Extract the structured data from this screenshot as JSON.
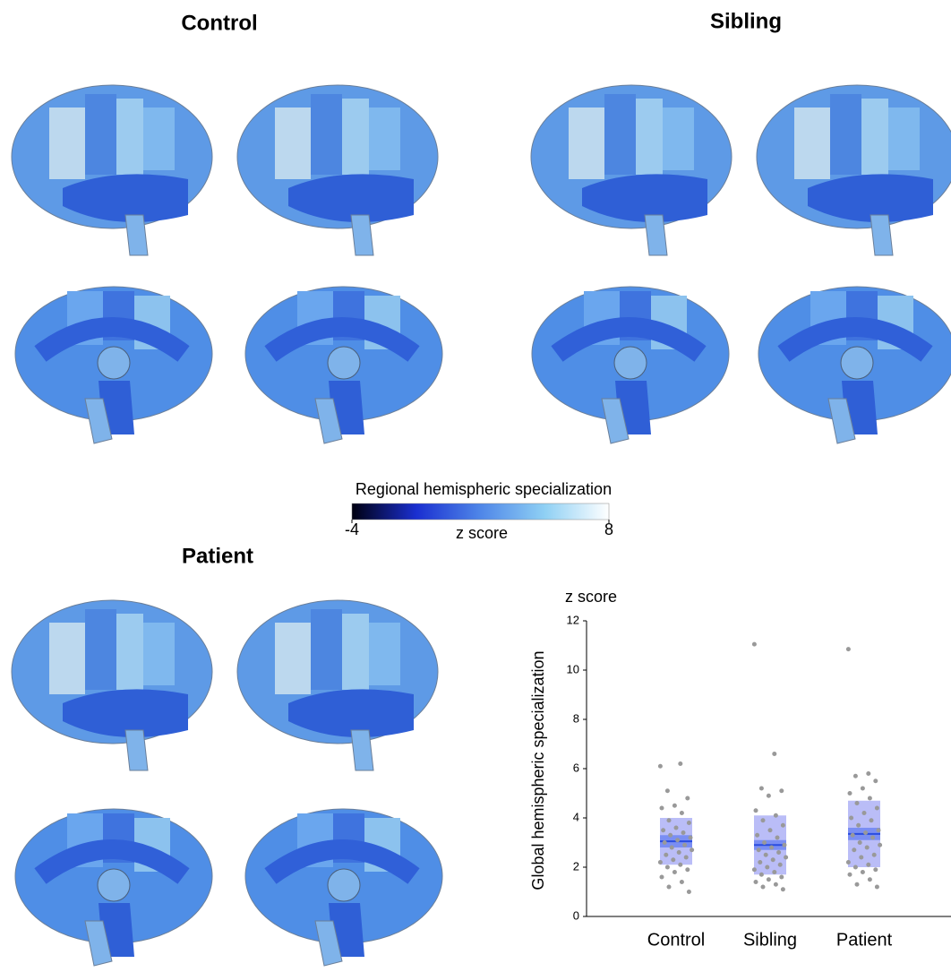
{
  "panels": [
    {
      "title": "Control"
    },
    {
      "title": "Sibling"
    },
    {
      "title": "Patient"
    }
  ],
  "colorbar": {
    "title": "Regional hemispheric specialization",
    "label": "z score",
    "lim": [
      -4,
      8
    ],
    "ticks": [
      -4,
      8
    ],
    "colors": [
      "#000010",
      "#1a2fd0",
      "#4f86e8",
      "#8fd0f4",
      "#ffffff"
    ]
  },
  "chart_data": {
    "type": "strip",
    "unit_label": "z score",
    "ylabel": "Global hemispheric specialization",
    "categories": [
      "Control",
      "Sibling",
      "Patient"
    ],
    "ylim": [
      0,
      12
    ],
    "yticks": [
      0,
      2,
      4,
      6,
      8,
      10,
      12
    ],
    "point_color": "#999999",
    "sd_color": "#a9adf5",
    "ci_color": "#6f86f2",
    "mean_color": "#2a4de0",
    "groups": [
      {
        "mean": 3.05,
        "ci": [
          2.8,
          3.3
        ],
        "sd": [
          2.1,
          4.0
        ],
        "points": [
          6.1,
          6.2,
          5.1,
          4.8,
          4.5,
          4.4,
          4.2,
          3.9,
          3.8,
          3.6,
          3.5,
          3.4,
          3.3,
          3.2,
          3.1,
          3.0,
          2.9,
          2.8,
          2.7,
          2.6,
          2.5,
          2.4,
          2.3,
          2.2,
          2.1,
          2.0,
          1.9,
          1.8,
          1.6,
          1.4,
          1.2,
          1.0
        ]
      },
      {
        "mean": 2.9,
        "ci": [
          2.7,
          3.1
        ],
        "sd": [
          1.7,
          4.1
        ],
        "points": [
          11.05,
          6.6,
          5.2,
          5.1,
          4.9,
          4.3,
          4.1,
          3.9,
          3.7,
          3.5,
          3.3,
          3.2,
          3.0,
          2.9,
          2.8,
          2.7,
          2.6,
          2.5,
          2.4,
          2.3,
          2.2,
          2.1,
          2.0,
          1.9,
          1.8,
          1.7,
          1.6,
          1.5,
          1.4,
          1.3,
          1.2,
          1.1
        ]
      },
      {
        "mean": 3.35,
        "ci": [
          3.1,
          3.6
        ],
        "sd": [
          2.0,
          4.7
        ],
        "points": [
          10.85,
          5.8,
          5.7,
          5.5,
          5.2,
          5.0,
          4.8,
          4.6,
          4.4,
          4.2,
          4.0,
          3.9,
          3.7,
          3.5,
          3.4,
          3.3,
          3.2,
          3.0,
          2.9,
          2.8,
          2.7,
          2.5,
          2.4,
          2.2,
          2.1,
          2.0,
          1.9,
          1.8,
          1.7,
          1.5,
          1.3,
          1.2
        ]
      }
    ]
  }
}
